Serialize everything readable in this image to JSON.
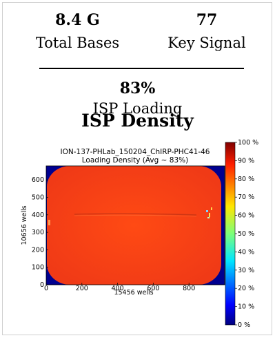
{
  "stats": {
    "total_bases": {
      "value": "8.4 G",
      "label": "Total Bases"
    },
    "key_signal": {
      "value": "77",
      "label": "Key Signal"
    },
    "isp_loading": {
      "value": "83%",
      "label": "ISP Loading"
    }
  },
  "section_title": "ISP Density",
  "chart_data": {
    "type": "heatmap",
    "title": "ION-137-PHLab_150204_ChIRP-PHC41-46",
    "subtitle": "Loading Density (Avg ~ 83%)",
    "xlabel": "15456 wells",
    "ylabel": "10656 wells",
    "xlim": [
      0,
      1000
    ],
    "ylim": [
      0,
      680
    ],
    "x_ticks": [
      "0",
      "200",
      "400",
      "600",
      "800"
    ],
    "y_ticks": [
      "0",
      "100",
      "200",
      "300",
      "400",
      "500",
      "600"
    ],
    "colorbar": {
      "labels": [
        "0 %",
        "10 %",
        "20 %",
        "30 %",
        "40 %",
        "50 %",
        "60 %",
        "70 %",
        "80 %",
        "90 %",
        "100 %"
      ],
      "range": [
        0,
        100
      ]
    },
    "average_loading_percent": 83,
    "colors": {
      "background": "#00008f",
      "fill": "#ff3b12",
      "edge": "#e13a1c"
    }
  }
}
